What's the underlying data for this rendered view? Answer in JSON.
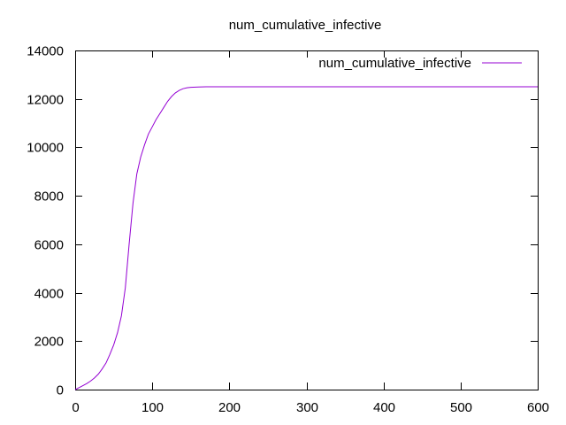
{
  "chart_data": {
    "type": "line",
    "title": "num_cumulative_infective",
    "xlabel": "",
    "ylabel": "",
    "xlim": [
      0,
      600
    ],
    "ylim": [
      0,
      14000
    ],
    "x_ticks": [
      0,
      100,
      200,
      300,
      400,
      500,
      600
    ],
    "y_ticks": [
      0,
      2000,
      4000,
      6000,
      8000,
      10000,
      12000,
      14000
    ],
    "grid": false,
    "legend_position": "top-right",
    "series": [
      {
        "name": "num_cumulative_infective",
        "color": "#9400d3",
        "points": [
          [
            0,
            0
          ],
          [
            5,
            80
          ],
          [
            10,
            160
          ],
          [
            15,
            250
          ],
          [
            20,
            350
          ],
          [
            25,
            480
          ],
          [
            30,
            640
          ],
          [
            35,
            850
          ],
          [
            40,
            1100
          ],
          [
            45,
            1450
          ],
          [
            50,
            1850
          ],
          [
            55,
            2350
          ],
          [
            60,
            3050
          ],
          [
            65,
            4200
          ],
          [
            70,
            6000
          ],
          [
            75,
            7700
          ],
          [
            80,
            8900
          ],
          [
            85,
            9600
          ],
          [
            90,
            10100
          ],
          [
            95,
            10550
          ],
          [
            100,
            10850
          ],
          [
            105,
            11150
          ],
          [
            110,
            11400
          ],
          [
            115,
            11650
          ],
          [
            120,
            11900
          ],
          [
            125,
            12100
          ],
          [
            130,
            12250
          ],
          [
            135,
            12350
          ],
          [
            140,
            12420
          ],
          [
            145,
            12460
          ],
          [
            150,
            12480
          ],
          [
            160,
            12495
          ],
          [
            170,
            12500
          ],
          [
            200,
            12500
          ],
          [
            300,
            12500
          ],
          [
            400,
            12500
          ],
          [
            500,
            12500
          ],
          [
            600,
            12500
          ]
        ]
      }
    ]
  }
}
